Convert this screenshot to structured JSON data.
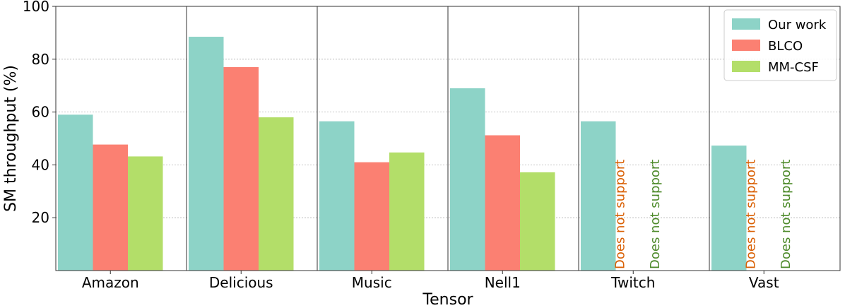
{
  "chart_data": {
    "type": "bar",
    "xlabel": "Tensor",
    "ylabel": "SM throughput (%)",
    "ylim": [
      0,
      100
    ],
    "yticks": [
      "20",
      "40",
      "60",
      "80",
      "100"
    ],
    "grid": "horizontal dotted",
    "legend": "top-right",
    "categories": [
      "Amazon",
      "Delicious",
      "Music",
      "Nell1",
      "Twitch",
      "Vast"
    ],
    "series": [
      {
        "name": "Our work",
        "color": "#8dd3c7",
        "values": [
          59,
          88.5,
          56.5,
          69,
          56.5,
          47.3
        ]
      },
      {
        "name": "BLCO",
        "color": "#fb8072",
        "values": [
          47.7,
          77,
          41,
          51.2,
          null,
          null
        ]
      },
      {
        "name": "MM-CSF",
        "color": "#b3de69",
        "values": [
          43.2,
          58,
          44.7,
          37.2,
          null,
          null
        ]
      }
    ],
    "annotations": [
      {
        "category": "Twitch",
        "series": "BLCO",
        "text": "Does not support",
        "color": "#d95f02"
      },
      {
        "category": "Twitch",
        "series": "MM-CSF",
        "text": "Does not support",
        "color": "#4d8a2a"
      },
      {
        "category": "Vast",
        "series": "BLCO",
        "text": "Does not support",
        "color": "#d95f02"
      },
      {
        "category": "Vast",
        "series": "MM-CSF",
        "text": "Does not support",
        "color": "#4d8a2a"
      }
    ]
  }
}
